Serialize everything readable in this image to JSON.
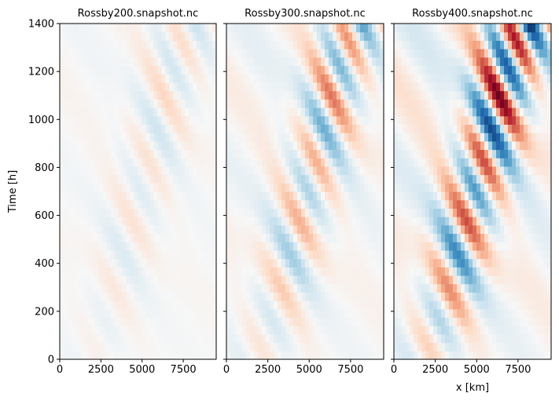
{
  "figure": {
    "ylabel": "Time [h]",
    "xlabel": "x [km]",
    "colormap": "RdBu_r (blue = negative, red = positive, near-white = 0)"
  },
  "chart_data": [
    {
      "type": "heatmap",
      "title": "Rossby200.snapshot.nc",
      "xlabel": "",
      "ylabel": "Time [h]",
      "xlim": [
        0,
        9500
      ],
      "ylim": [
        0,
        1400
      ],
      "xticks": [
        "0",
        "2500",
        "5000",
        "7500"
      ],
      "yticks": [
        "0",
        "200",
        "400",
        "600",
        "800",
        "1000",
        "1200",
        "1400"
      ],
      "amplitude": 0.22
    },
    {
      "type": "heatmap",
      "title": "Rossby300.snapshot.nc",
      "xlabel": "",
      "ylabel": "",
      "xlim": [
        0,
        9500
      ],
      "ylim": [
        0,
        1400
      ],
      "xticks": [
        "0",
        "2500",
        "5000",
        "7500"
      ],
      "yticks": [],
      "amplitude": 0.55
    },
    {
      "type": "heatmap",
      "title": "Rossby400.snapshot.nc",
      "xlabel": "x [km]",
      "ylabel": "",
      "xlim": [
        0,
        9500
      ],
      "ylim": [
        0,
        1400
      ],
      "xticks": [
        "0",
        "2500",
        "5000",
        "7500"
      ],
      "yticks": [],
      "amplitude": 1.0
    }
  ]
}
